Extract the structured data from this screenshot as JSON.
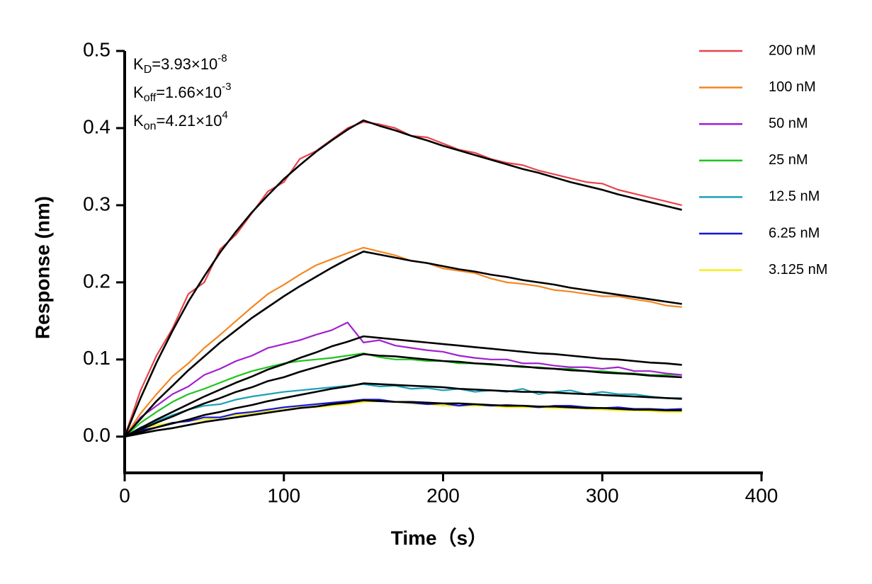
{
  "chart_data": {
    "type": "line",
    "x_label": "Time（s）",
    "y_label": "Response (nm)",
    "annotations": [
      {
        "symbol": "K",
        "subscript": "D",
        "text": "=3.93×10",
        "superscript": "-8"
      },
      {
        "symbol": "K",
        "subscript": "off",
        "text": "=1.66×10",
        "superscript": "-3"
      },
      {
        "symbol": "K",
        "subscript": "on",
        "text": "=4.21×10",
        "superscript": "4"
      }
    ],
    "xlim": [
      0,
      400
    ],
    "xticks": [
      0,
      100,
      200,
      300,
      400
    ],
    "ylim": [
      -0.047,
      0.5
    ],
    "yticks": [
      {
        "value": 0,
        "label": "0.0"
      },
      0.1,
      0.2,
      0.3,
      0.4,
      0.5
    ],
    "x": [
      0,
      10,
      20,
      30,
      40,
      50,
      60,
      70,
      80,
      90,
      100,
      110,
      120,
      130,
      140,
      150,
      160,
      170,
      180,
      190,
      200,
      210,
      220,
      230,
      240,
      250,
      260,
      270,
      280,
      290,
      300,
      310,
      320,
      330,
      340,
      350
    ],
    "series": [
      {
        "name": "200 nM",
        "color": "#e8434a",
        "values": [
          0,
          0.06,
          0.105,
          0.14,
          0.185,
          0.2,
          0.243,
          0.262,
          0.29,
          0.318,
          0.33,
          0.36,
          0.37,
          0.385,
          0.4,
          0.408,
          0.405,
          0.4,
          0.39,
          0.388,
          0.38,
          0.372,
          0.368,
          0.36,
          0.355,
          0.352,
          0.345,
          0.34,
          0.335,
          0.33,
          0.328,
          0.32,
          0.315,
          0.31,
          0.305,
          0.3
        ]
      },
      {
        "name": "100 nM",
        "color": "#f5861f",
        "values": [
          0,
          0.03,
          0.055,
          0.078,
          0.095,
          0.115,
          0.132,
          0.15,
          0.168,
          0.185,
          0.197,
          0.21,
          0.222,
          0.23,
          0.238,
          0.245,
          0.24,
          0.235,
          0.228,
          0.225,
          0.218,
          0.215,
          0.212,
          0.205,
          0.2,
          0.198,
          0.195,
          0.19,
          0.188,
          0.185,
          0.182,
          0.182,
          0.178,
          0.175,
          0.17,
          0.168
        ]
      },
      {
        "name": "50 nM",
        "color": "#a020d0",
        "values": [
          0,
          0.025,
          0.04,
          0.055,
          0.065,
          0.08,
          0.088,
          0.098,
          0.105,
          0.115,
          0.12,
          0.125,
          0.132,
          0.138,
          0.148,
          0.122,
          0.125,
          0.118,
          0.115,
          0.112,
          0.11,
          0.105,
          0.102,
          0.1,
          0.1,
          0.095,
          0.095,
          0.092,
          0.09,
          0.09,
          0.088,
          0.09,
          0.085,
          0.085,
          0.082,
          0.08
        ]
      },
      {
        "name": "25 nM",
        "color": "#1fc41f",
        "values": [
          0,
          0.018,
          0.032,
          0.045,
          0.055,
          0.062,
          0.07,
          0.078,
          0.085,
          0.09,
          0.095,
          0.098,
          0.1,
          0.102,
          0.105,
          0.108,
          0.103,
          0.1,
          0.1,
          0.098,
          0.098,
          0.095,
          0.095,
          0.093,
          0.092,
          0.09,
          0.09,
          0.088,
          0.088,
          0.085,
          0.085,
          0.083,
          0.082,
          0.08,
          0.08,
          0.08
        ]
      },
      {
        "name": "12.5 nM",
        "color": "#1ba1b5",
        "values": [
          0,
          0.012,
          0.02,
          0.028,
          0.035,
          0.04,
          0.042,
          0.048,
          0.052,
          0.055,
          0.058,
          0.06,
          0.062,
          0.064,
          0.066,
          0.068,
          0.065,
          0.066,
          0.062,
          0.063,
          0.06,
          0.062,
          0.058,
          0.06,
          0.058,
          0.062,
          0.055,
          0.058,
          0.06,
          0.055,
          0.058,
          0.055,
          0.055,
          0.052,
          0.05,
          0.05
        ]
      },
      {
        "name": "6.25 nM",
        "color": "#1515d6",
        "values": [
          0,
          0.008,
          0.012,
          0.018,
          0.02,
          0.025,
          0.025,
          0.03,
          0.032,
          0.035,
          0.038,
          0.04,
          0.042,
          0.044,
          0.046,
          0.048,
          0.048,
          0.045,
          0.044,
          0.042,
          0.043,
          0.04,
          0.042,
          0.04,
          0.041,
          0.04,
          0.038,
          0.04,
          0.04,
          0.038,
          0.037,
          0.038,
          0.036,
          0.036,
          0.035,
          0.036
        ]
      },
      {
        "name": "3.125 nM",
        "color": "#f5ee1a",
        "values": [
          0,
          0.01,
          0.015,
          0.018,
          0.02,
          0.022,
          0.025,
          0.028,
          0.03,
          0.033,
          0.035,
          0.038,
          0.038,
          0.04,
          0.042,
          0.045,
          0.046,
          0.045,
          0.043,
          0.042,
          0.04,
          0.04,
          0.04,
          0.04,
          0.038,
          0.038,
          0.038,
          0.037,
          0.037,
          0.036,
          0.035,
          0.034,
          0.034,
          0.033,
          0.032,
          0.032
        ]
      },
      {
        "color": "#000000",
        "values": [
          0,
          0.05,
          0.096,
          0.137,
          0.175,
          0.208,
          0.239,
          0.266,
          0.291,
          0.313,
          0.334,
          0.352,
          0.369,
          0.384,
          0.398,
          0.41,
          0.403,
          0.397,
          0.39,
          0.384,
          0.377,
          0.371,
          0.365,
          0.359,
          0.353,
          0.347,
          0.342,
          0.336,
          0.33,
          0.325,
          0.32,
          0.314,
          0.309,
          0.304,
          0.299,
          0.294
        ]
      },
      {
        "color": "#000000",
        "values": [
          0,
          0.023,
          0.046,
          0.066,
          0.086,
          0.104,
          0.122,
          0.138,
          0.154,
          0.168,
          0.182,
          0.195,
          0.207,
          0.219,
          0.23,
          0.24,
          0.236,
          0.232,
          0.228,
          0.225,
          0.221,
          0.217,
          0.214,
          0.21,
          0.207,
          0.203,
          0.2,
          0.197,
          0.193,
          0.19,
          0.187,
          0.184,
          0.181,
          0.178,
          0.175,
          0.172
        ]
      },
      {
        "color": "#000000",
        "values": [
          0,
          0.011,
          0.022,
          0.032,
          0.042,
          0.052,
          0.061,
          0.07,
          0.078,
          0.087,
          0.094,
          0.102,
          0.109,
          0.117,
          0.123,
          0.13,
          0.128,
          0.126,
          0.124,
          0.122,
          0.12,
          0.118,
          0.116,
          0.114,
          0.112,
          0.11,
          0.108,
          0.107,
          0.105,
          0.103,
          0.101,
          0.1,
          0.098,
          0.096,
          0.095,
          0.093
        ]
      },
      {
        "color": "#000000",
        "values": [
          0,
          0.009,
          0.018,
          0.026,
          0.035,
          0.043,
          0.05,
          0.058,
          0.064,
          0.072,
          0.077,
          0.084,
          0.09,
          0.096,
          0.101,
          0.107,
          0.105,
          0.104,
          0.102,
          0.1,
          0.098,
          0.097,
          0.095,
          0.094,
          0.092,
          0.091,
          0.089,
          0.088,
          0.086,
          0.085,
          0.083,
          0.082,
          0.081,
          0.079,
          0.078,
          0.077
        ]
      },
      {
        "color": "#000000",
        "values": [
          0,
          0.006,
          0.012,
          0.017,
          0.022,
          0.028,
          0.032,
          0.037,
          0.041,
          0.046,
          0.05,
          0.054,
          0.058,
          0.062,
          0.065,
          0.069,
          0.068,
          0.067,
          0.066,
          0.065,
          0.064,
          0.062,
          0.061,
          0.06,
          0.059,
          0.058,
          0.058,
          0.057,
          0.056,
          0.055,
          0.054,
          0.053,
          0.052,
          0.051,
          0.05,
          0.049
        ]
      },
      {
        "color": "#000000",
        "values": [
          0,
          0.004,
          0.008,
          0.011,
          0.015,
          0.019,
          0.022,
          0.025,
          0.028,
          0.031,
          0.034,
          0.037,
          0.039,
          0.042,
          0.044,
          0.047,
          0.046,
          0.045,
          0.045,
          0.044,
          0.043,
          0.043,
          0.042,
          0.041,
          0.04,
          0.04,
          0.039,
          0.039,
          0.038,
          0.037,
          0.037,
          0.036,
          0.035,
          0.035,
          0.034,
          0.034
        ]
      }
    ]
  }
}
